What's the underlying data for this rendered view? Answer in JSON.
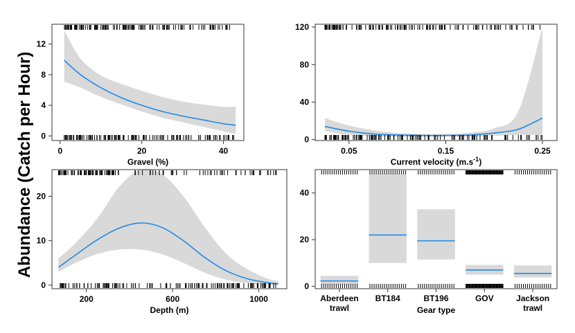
{
  "y_axis_title": "Abundance  (Catch per Hour)",
  "colors": {
    "fit": "#1f88e5",
    "band": "#d9d9d9",
    "rug": "#000000"
  },
  "chart_data": [
    {
      "id": "gravel",
      "type": "line",
      "xlabel": "Gravel (%)",
      "ylabel": "",
      "xlim": [
        -2,
        45
      ],
      "ylim": [
        -0.6,
        14.6
      ],
      "xticks": [
        0,
        20,
        40
      ],
      "yticks": [
        0,
        4,
        8,
        12
      ],
      "series": [
        {
          "x": [
            1,
            5,
            10,
            15,
            20,
            25,
            30,
            35,
            40,
            43
          ],
          "y": [
            9.9,
            8.0,
            6.3,
            5.0,
            4.0,
            3.2,
            2.6,
            2.1,
            1.6,
            1.4
          ],
          "lower": [
            7.1,
            6.3,
            5.1,
            4.1,
            3.2,
            2.4,
            1.8,
            1.2,
            0.6,
            0.3
          ],
          "upper": [
            13.8,
            10.1,
            7.9,
            6.8,
            5.9,
            5.1,
            4.5,
            4.1,
            3.8,
            3.8
          ]
        }
      ],
      "rug": "dense-continuous"
    },
    {
      "id": "current",
      "type": "line",
      "xlabel": "Current velocity (m.s-1)",
      "ylabel": "",
      "xlim": [
        0.015,
        0.265
      ],
      "ylim": [
        -1,
        123
      ],
      "xticks": [
        0.05,
        0.15,
        0.25
      ],
      "yticks": [
        0,
        40,
        80,
        120
      ],
      "series": [
        {
          "x": [
            0.025,
            0.05,
            0.075,
            0.1,
            0.125,
            0.15,
            0.175,
            0.2,
            0.225,
            0.25
          ],
          "y": [
            14,
            9,
            6,
            5,
            4.5,
            4.5,
            5,
            7,
            11,
            23
          ],
          "lower": [
            9,
            5,
            3.5,
            3,
            3,
            3,
            3.2,
            4,
            5,
            5
          ],
          "upper": [
            23,
            15,
            10,
            7,
            6,
            6,
            7.5,
            12,
            30,
            120
          ]
        }
      ],
      "rug": "dense-continuous"
    },
    {
      "id": "depth",
      "type": "line",
      "xlabel": "Depth (m)",
      "ylabel": "",
      "xlim": [
        40,
        1130
      ],
      "ylim": [
        -0.8,
        26
      ],
      "xticks": [
        200,
        600,
        1000
      ],
      "yticks": [
        0,
        10,
        20
      ],
      "series": [
        {
          "x": [
            70,
            150,
            250,
            350,
            450,
            550,
            650,
            750,
            850,
            950,
            1050,
            1090
          ],
          "y": [
            4,
            6.8,
            10.2,
            12.8,
            14,
            13,
            10,
            6.2,
            3.2,
            1.4,
            0.5,
            0.3
          ],
          "lower": [
            3,
            5,
            7,
            8,
            8,
            7,
            5,
            2.8,
            1.2,
            0.4,
            0.1,
            0
          ],
          "upper": [
            6,
            9.5,
            15,
            22,
            26,
            25,
            20,
            13,
            7,
            3.5,
            1.3,
            1
          ]
        }
      ],
      "rug": "dense-continuous"
    },
    {
      "id": "gear",
      "type": "bar",
      "xlabel": "Gear type",
      "ylabel": "",
      "categories": [
        "Aberdeen\ntrawl",
        "BT184",
        "BT196",
        "GOV",
        "Jackson\ntrawl"
      ],
      "values": [
        2.3,
        22,
        19.5,
        7,
        5.5
      ],
      "lower": [
        0.8,
        10,
        11.5,
        5,
        3.8
      ],
      "upper": [
        4.5,
        48,
        33,
        9.2,
        9
      ],
      "ylim": [
        -1,
        50
      ],
      "yticks": [
        0,
        20,
        40
      ],
      "rug": "per-category"
    }
  ]
}
